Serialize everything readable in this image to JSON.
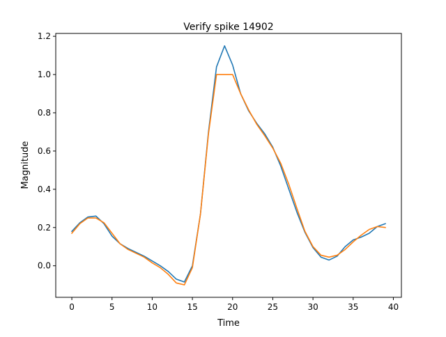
{
  "chart_data": {
    "type": "line",
    "title": "Verify spike 14902",
    "xlabel": "Time",
    "ylabel": "Magnitude",
    "xlim": [
      -2,
      41
    ],
    "ylim": [
      -0.165,
      1.215
    ],
    "x_ticks": [
      0,
      5,
      10,
      15,
      20,
      25,
      30,
      35,
      40
    ],
    "y_ticks": [
      0.0,
      0.2,
      0.4,
      0.6,
      0.8,
      1.0,
      1.2
    ],
    "x_tick_labels": [
      "0",
      "5",
      "10",
      "15",
      "20",
      "25",
      "30",
      "35",
      "40"
    ],
    "y_tick_labels": [
      "0.0",
      "0.2",
      "0.4",
      "0.6",
      "0.8",
      "1.0",
      "1.2"
    ],
    "grid": false,
    "legend": false,
    "x": [
      0,
      1,
      2,
      3,
      4,
      5,
      6,
      7,
      8,
      9,
      10,
      11,
      12,
      13,
      14,
      15,
      16,
      17,
      18,
      19,
      20,
      21,
      22,
      23,
      24,
      25,
      26,
      27,
      28,
      29,
      30,
      31,
      32,
      33,
      34,
      35,
      36,
      37,
      38,
      39
    ],
    "series": [
      {
        "color": "#1f77b4",
        "values": [
          0.18,
          0.225,
          0.255,
          0.26,
          0.22,
          0.155,
          0.115,
          0.09,
          0.07,
          0.05,
          0.025,
          0.0,
          -0.03,
          -0.07,
          -0.085,
          0.0,
          0.27,
          0.7,
          1.04,
          1.15,
          1.05,
          0.9,
          0.81,
          0.745,
          0.69,
          0.62,
          0.52,
          0.4,
          0.28,
          0.175,
          0.095,
          0.045,
          0.03,
          0.05,
          0.1,
          0.135,
          0.15,
          0.17,
          0.205,
          0.22
        ]
      },
      {
        "color": "#ff7f0e",
        "values": [
          0.17,
          0.22,
          0.25,
          0.25,
          0.225,
          0.17,
          0.115,
          0.085,
          0.065,
          0.045,
          0.015,
          -0.01,
          -0.045,
          -0.09,
          -0.1,
          -0.01,
          0.27,
          0.69,
          1.0,
          1.0,
          1.0,
          0.9,
          0.815,
          0.74,
          0.68,
          0.615,
          0.535,
          0.425,
          0.3,
          0.18,
          0.1,
          0.055,
          0.045,
          0.055,
          0.085,
          0.125,
          0.16,
          0.19,
          0.205,
          0.2
        ]
      }
    ]
  }
}
